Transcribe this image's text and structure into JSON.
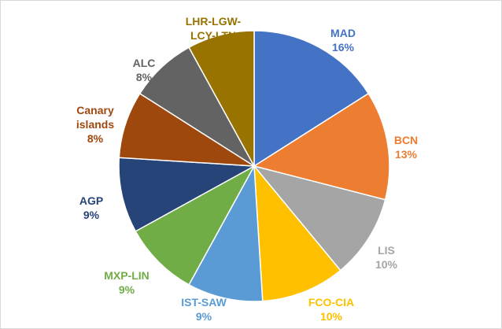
{
  "chart_data": {
    "type": "pie",
    "categories": [
      "MAD",
      "BCN",
      "LIS",
      "FCO-CIA",
      "IST-SAW",
      "MXP-LIN",
      "AGP",
      "Canary islands",
      "ALC",
      "LHR-LGW-LCY-LTN"
    ],
    "values": [
      16,
      13,
      10,
      10,
      9,
      9,
      9,
      8,
      8,
      8
    ],
    "value_labels": [
      "16%",
      "13%",
      "10%",
      "10%",
      "9%",
      "9%",
      "9%",
      "8%",
      "8%",
      "8%"
    ],
    "colors": [
      "#4472C4",
      "#ED7D31",
      "#A5A5A5",
      "#FFC000",
      "#5B9BD5",
      "#70AD47",
      "#264478",
      "#9E480E",
      "#636363",
      "#997300"
    ]
  }
}
